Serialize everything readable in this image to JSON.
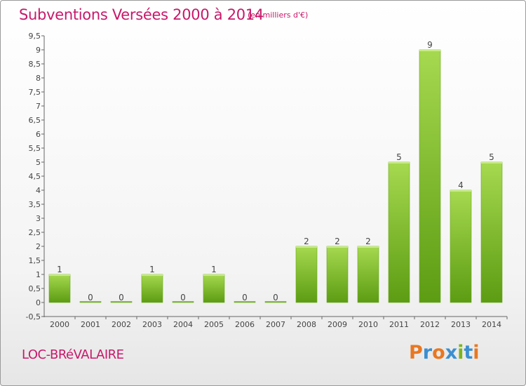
{
  "header": {
    "title": "Subventions Versées 2000 à 2014",
    "subtitle": "(en milliers d'€)"
  },
  "footer": {
    "commune": "LOC-BRéVALAIRE",
    "logo": "Proxiti"
  },
  "colors": {
    "title": "#c8186a",
    "bar_light": "#9fd24a",
    "bar_dark": "#5a9a12",
    "logo_letters": [
      "#e87722",
      "#3b8fd0",
      "#e87722",
      "#3b8fd0",
      "#7ab51d",
      "#3b8fd0",
      "#e87722"
    ]
  },
  "chart_data": {
    "type": "bar",
    "title": "Subventions Versées 2000 à 2014",
    "categories": [
      "2000",
      "2001",
      "2002",
      "2003",
      "2004",
      "2005",
      "2006",
      "2007",
      "2008",
      "2009",
      "2010",
      "2011",
      "2012",
      "2013",
      "2014"
    ],
    "values": [
      1,
      0,
      0,
      1,
      0,
      1,
      0,
      0,
      2,
      2,
      2,
      5,
      9,
      4,
      5
    ],
    "yticks": [
      "-0,5",
      "0",
      "0,5",
      "1",
      "1,5",
      "2",
      "2,5",
      "3",
      "3,5",
      "4",
      "4,5",
      "5",
      "5,5",
      "6",
      "6,5",
      "7",
      "7,5",
      "8",
      "8,5",
      "9",
      "9,5"
    ],
    "ylim": [
      -0.5,
      9.5
    ],
    "xlabel": "",
    "ylabel": "",
    "grid": false
  }
}
